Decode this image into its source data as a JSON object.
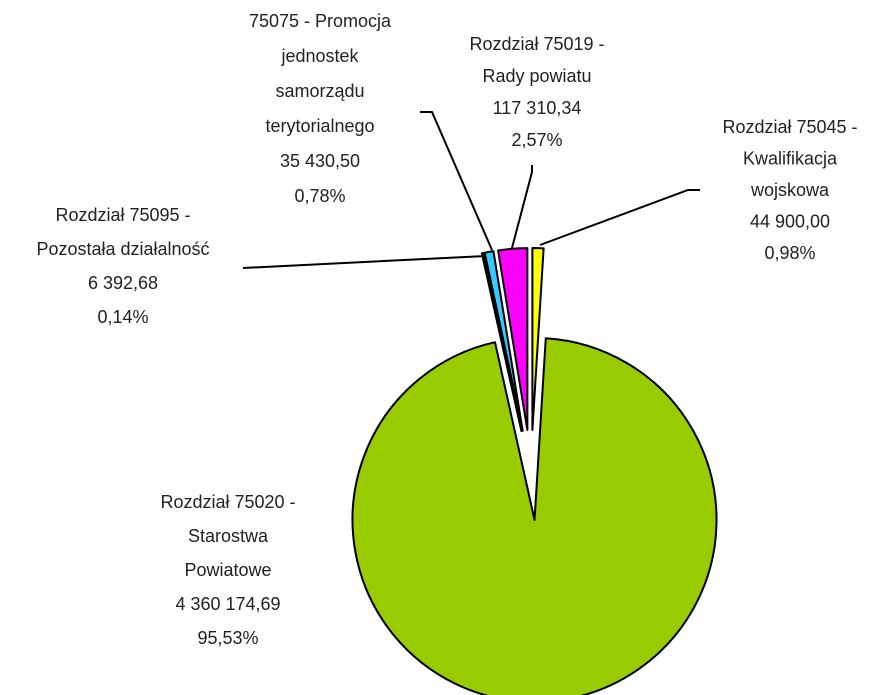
{
  "chart_data": {
    "type": "pie",
    "categories": [
      "Rozdział 75045 - Kwalifikacja wojskowa",
      "Rozdział 75020 - Starostwa Powiatowe",
      "Rozdział 75095 - Pozostała działalność",
      "75075 - Promocja jednostek samorządu terytorialnego",
      "Rozdział 75019 - Rady powiatu"
    ],
    "values": [
      44900.0,
      4360174.69,
      6392.68,
      35430.5,
      117310.34
    ],
    "value_labels": [
      "44 900,00",
      "4 360 174,69",
      "6 392,68",
      "35 430,50",
      "117 310,34"
    ],
    "percentages": [
      0.98,
      95.53,
      0.14,
      0.78,
      2.57
    ],
    "percent_labels": [
      "0,98%",
      "95,53%",
      "0,14%",
      "0,78%",
      "2,57%"
    ],
    "colors": [
      "#ffff00",
      "#99cc00",
      "#1a1a1a",
      "#33ccff",
      "#ff00ff"
    ]
  }
}
